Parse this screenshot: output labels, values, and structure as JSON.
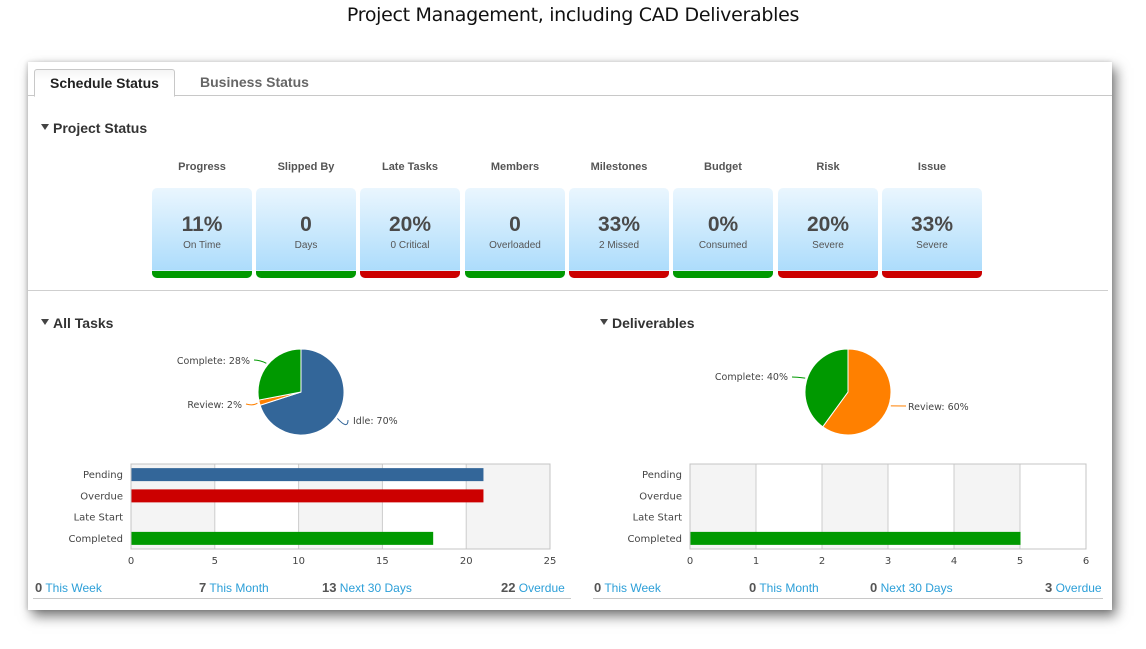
{
  "caption": "Project Management, including CAD Deliverables",
  "tabs": [
    {
      "label": "Schedule Status",
      "active": true
    },
    {
      "label": "Business Status",
      "active": false
    }
  ],
  "project_status": {
    "title": "Project Status",
    "kpis": [
      {
        "label": "Progress",
        "value": "11%",
        "sub": "On Time",
        "status": "good"
      },
      {
        "label": "Slipped By",
        "value": "0",
        "sub": "Days",
        "status": "good"
      },
      {
        "label": "Late Tasks",
        "value": "20%",
        "sub": "0 Critical",
        "status": "bad"
      },
      {
        "label": "Members",
        "value": "0",
        "sub": "Overloaded",
        "status": "good"
      },
      {
        "label": "Milestones",
        "value": "33%",
        "sub": "2 Missed",
        "status": "bad"
      },
      {
        "label": "Budget",
        "value": "0%",
        "sub": "Consumed",
        "status": "good"
      },
      {
        "label": "Risk",
        "value": "20%",
        "sub": "Severe",
        "status": "bad"
      },
      {
        "label": "Issue",
        "value": "33%",
        "sub": "Severe",
        "status": "bad"
      }
    ]
  },
  "colors": {
    "good": "#009900",
    "bad": "#cc0000",
    "idle": "#336699",
    "review": "#ff8000",
    "complete": "#009900",
    "link": "#2c9fd8"
  },
  "all_tasks": {
    "title": "All Tasks",
    "footer": [
      {
        "count": "0",
        "label": "This Week"
      },
      {
        "count": "7",
        "label": "This Month"
      },
      {
        "count": "13",
        "label": "Next 30 Days"
      },
      {
        "count": "22",
        "label": "Overdue"
      }
    ]
  },
  "deliverables": {
    "title": "Deliverables",
    "footer": [
      {
        "count": "0",
        "label": "This Week"
      },
      {
        "count": "0",
        "label": "This Month"
      },
      {
        "count": "0",
        "label": "Next 30 Days"
      },
      {
        "count": "3",
        "label": "Overdue"
      }
    ]
  },
  "chart_data": [
    {
      "id": "all-tasks-pie",
      "type": "pie",
      "title": "",
      "slices": [
        {
          "label": "Idle",
          "value": 70,
          "color": "#336699"
        },
        {
          "label": "Review",
          "value": 2,
          "color": "#ff8000"
        },
        {
          "label": "Complete",
          "value": 28,
          "color": "#009900"
        }
      ],
      "label_format": "{label}: {value}%"
    },
    {
      "id": "all-tasks-bar",
      "type": "bar",
      "orientation": "horizontal",
      "categories": [
        "Pending",
        "Overdue",
        "Late Start",
        "Completed"
      ],
      "values": [
        21,
        21,
        0,
        18
      ],
      "colors": [
        "#336699",
        "#cc0000",
        "#999999",
        "#009900"
      ],
      "xlim": [
        0,
        25
      ],
      "xticks": [
        0,
        5,
        10,
        15,
        20,
        25
      ],
      "grid": true,
      "xlabel": "",
      "ylabel": ""
    },
    {
      "id": "deliverables-pie",
      "type": "pie",
      "title": "",
      "slices": [
        {
          "label": "Review",
          "value": 60,
          "color": "#ff8000"
        },
        {
          "label": "Complete",
          "value": 40,
          "color": "#009900"
        }
      ],
      "label_format": "{label}: {value}%"
    },
    {
      "id": "deliverables-bar",
      "type": "bar",
      "orientation": "horizontal",
      "categories": [
        "Pending",
        "Overdue",
        "Late Start",
        "Completed"
      ],
      "values": [
        0,
        0,
        0,
        5
      ],
      "colors": [
        "#336699",
        "#cc0000",
        "#999999",
        "#009900"
      ],
      "xlim": [
        0,
        6
      ],
      "xticks": [
        0,
        1,
        2,
        3,
        4,
        5,
        6
      ],
      "grid": true,
      "xlabel": "",
      "ylabel": ""
    }
  ]
}
